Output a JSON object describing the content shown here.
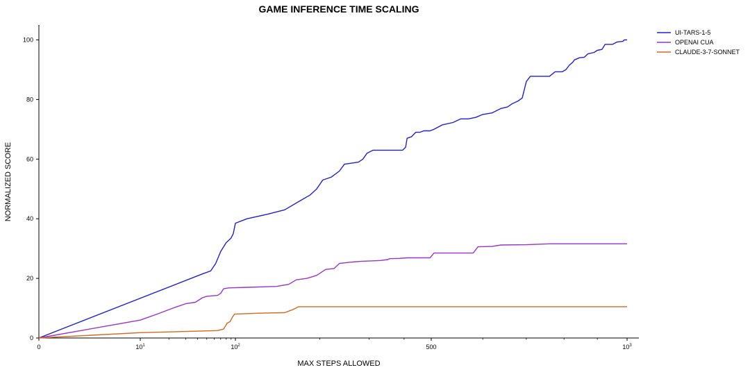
{
  "chart_data": {
    "type": "line",
    "title": "GAME INFERENCE TIME SCALING",
    "xlabel": "MAX STEPS ALLOWED",
    "ylabel": "NORMALIZED SCORE",
    "ylim": [
      0,
      105
    ],
    "yticks": [
      0,
      20,
      40,
      60,
      80,
      100
    ],
    "xlim": [
      0,
      1000
    ],
    "xscale": "symlog",
    "xticks": [
      {
        "value": 0,
        "base": "0",
        "exp": ""
      },
      {
        "value": 10,
        "base": "10",
        "exp": "1"
      },
      {
        "value": 100,
        "base": "10",
        "exp": "2"
      },
      {
        "value": 500,
        "base": "500",
        "exp": ""
      },
      {
        "value": 1000,
        "base": "10",
        "exp": "3"
      }
    ],
    "grid": false,
    "legend_position": "top-right",
    "series": [
      {
        "name": "UI-TARS-1-5",
        "color": "#1f1fd6",
        "points": [
          [
            0,
            0
          ],
          [
            45,
            21.5
          ],
          [
            55,
            22.5
          ],
          [
            62,
            25
          ],
          [
            70,
            29
          ],
          [
            80,
            32
          ],
          [
            90,
            33.5
          ],
          [
            95,
            35
          ],
          [
            100,
            38.5
          ],
          [
            110,
            40
          ],
          [
            130,
            41.5
          ],
          [
            150,
            43
          ],
          [
            170,
            46
          ],
          [
            185,
            48
          ],
          [
            195,
            50
          ],
          [
            205,
            53
          ],
          [
            220,
            54
          ],
          [
            235,
            56
          ],
          [
            245,
            58.3
          ],
          [
            275,
            59
          ],
          [
            285,
            60
          ],
          [
            295,
            62
          ],
          [
            310,
            63
          ],
          [
            395,
            63
          ],
          [
            405,
            64
          ],
          [
            410,
            67
          ],
          [
            425,
            67.5
          ],
          [
            440,
            69
          ],
          [
            455,
            69
          ],
          [
            470,
            69.5
          ],
          [
            495,
            69.5
          ],
          [
            505,
            70
          ],
          [
            520,
            71.5
          ],
          [
            540,
            72.3
          ],
          [
            555,
            73.5
          ],
          [
            570,
            73.5
          ],
          [
            585,
            74
          ],
          [
            600,
            75
          ],
          [
            620,
            75.5
          ],
          [
            640,
            77
          ],
          [
            655,
            77.5
          ],
          [
            665,
            78.5
          ],
          [
            680,
            79.5
          ],
          [
            690,
            80.5
          ],
          [
            700,
            86
          ],
          [
            710,
            87.8
          ],
          [
            760,
            87.8
          ],
          [
            775,
            89.3
          ],
          [
            795,
            89.3
          ],
          [
            805,
            90
          ],
          [
            815,
            91.5
          ],
          [
            825,
            92.5
          ],
          [
            830,
            93.3
          ],
          [
            845,
            94
          ],
          [
            860,
            94.2
          ],
          [
            870,
            95.3
          ],
          [
            890,
            95.8
          ],
          [
            900,
            96.5
          ],
          [
            915,
            96.8
          ],
          [
            925,
            98.5
          ],
          [
            950,
            98.5
          ],
          [
            965,
            99.3
          ],
          [
            985,
            99.5
          ],
          [
            990,
            100
          ],
          [
            1000,
            100
          ]
        ]
      },
      {
        "name": "OPENAI CUA",
        "color": "#9932cc",
        "points": [
          [
            0,
            0
          ],
          [
            10,
            6
          ],
          [
            15,
            8
          ],
          [
            22,
            10
          ],
          [
            30,
            11.5
          ],
          [
            38,
            12
          ],
          [
            45,
            13.5
          ],
          [
            50,
            14
          ],
          [
            65,
            14.3
          ],
          [
            70,
            15
          ],
          [
            75,
            16.5
          ],
          [
            85,
            16.8
          ],
          [
            110,
            17
          ],
          [
            140,
            17.3
          ],
          [
            155,
            18
          ],
          [
            165,
            19.5
          ],
          [
            180,
            20
          ],
          [
            195,
            21
          ],
          [
            210,
            23
          ],
          [
            225,
            23.3
          ],
          [
            235,
            25
          ],
          [
            255,
            25.4
          ],
          [
            280,
            25.7
          ],
          [
            310,
            25.9
          ],
          [
            330,
            26
          ],
          [
            350,
            26.3
          ],
          [
            355,
            26.6
          ],
          [
            385,
            26.7
          ],
          [
            410,
            26.9
          ],
          [
            440,
            26.9
          ],
          [
            495,
            26.9
          ],
          [
            505,
            28.5
          ],
          [
            560,
            28.5
          ],
          [
            580,
            28.5
          ],
          [
            590,
            30.6
          ],
          [
            620,
            30.7
          ],
          [
            640,
            31.2
          ],
          [
            700,
            31.3
          ],
          [
            760,
            31.6
          ],
          [
            1000,
            31.6
          ]
        ]
      },
      {
        "name": "CLAUDE-3-7-SONNET",
        "color": "#d2691e",
        "points": [
          [
            0,
            0
          ],
          [
            10,
            1.8
          ],
          [
            30,
            2.2
          ],
          [
            65,
            2.5
          ],
          [
            75,
            3
          ],
          [
            82,
            5
          ],
          [
            88,
            5.5
          ],
          [
            93,
            7
          ],
          [
            98,
            8
          ],
          [
            120,
            8.3
          ],
          [
            150,
            8.5
          ],
          [
            160,
            9.5
          ],
          [
            168,
            10.5
          ],
          [
            1000,
            10.5
          ]
        ]
      }
    ]
  }
}
